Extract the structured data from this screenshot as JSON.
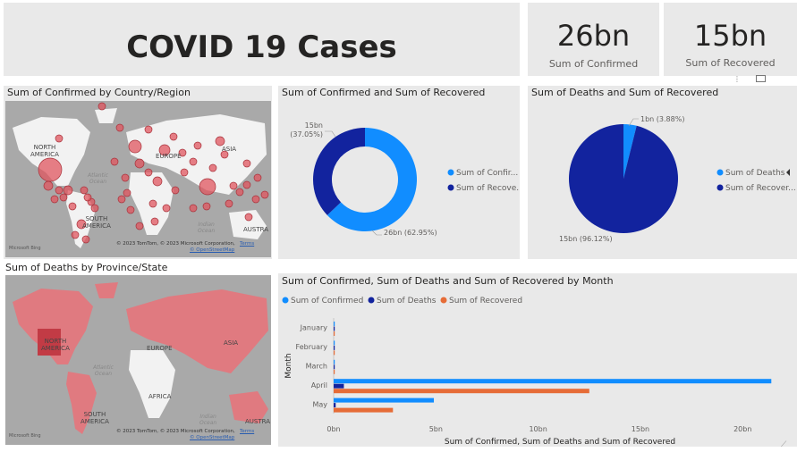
{
  "header": {
    "title": "COVID 19 Cases"
  },
  "kpis": [
    {
      "value": "26bn",
      "label": "Sum of Confirmed"
    },
    {
      "value": "15bn",
      "label": "Sum of Recovered"
    }
  ],
  "map1": {
    "title": "Sum of Confirmed by Country/Region",
    "labels": [
      "NORTH",
      "AMERICA",
      "ASIA",
      "Atlantic",
      "Ocean",
      "Indian",
      "Ocean",
      "SOUTH",
      "AMERICA",
      "AUSTRA",
      "EUROPE"
    ],
    "copyright": "© 2023 TomTom, © 2023 Microsoft Corporation,",
    "terms": "Terms",
    "osm": "© OpenStreetMap",
    "logo": "Microsoft Bing"
  },
  "map2": {
    "title": "Sum of Deaths by Province/State",
    "labels": [
      "NORTH",
      "AMERICA",
      "EUROPE",
      "ASIA",
      "AFRICA",
      "Atlantic",
      "Ocean",
      "Indian",
      "Ocean",
      "SOUTH",
      "AMERICA",
      "AUSTRA"
    ],
    "copyright": "© 2023 TomTom, © 2023 Microsoft Corporation,",
    "terms": "Terms",
    "osm": "© OpenStreetMap",
    "logo": "Microsoft Bing"
  },
  "colors": {
    "confirmed": "#118dff",
    "deaths": "#12239e",
    "recovered": "#e66c37"
  },
  "chart_data": [
    {
      "type": "pie",
      "variant": "donut",
      "title": "Sum of Confirmed and Sum of Recovered",
      "slices": [
        {
          "name": "Sum of Confirmed",
          "value": 26,
          "percent": 62.95,
          "label": "26bn (62.95%)",
          "legend": "Sum of Confir..."
        },
        {
          "name": "Sum of Recovered",
          "value": 15,
          "percent": 37.05,
          "label": "15bn (37.05%)",
          "legend": "Sum of Recove..."
        }
      ],
      "legend_position": "right"
    },
    {
      "type": "pie",
      "title": "Sum of Deaths and Sum of Recovered",
      "slices": [
        {
          "name": "Sum of Deaths",
          "value": 1,
          "percent": 3.88,
          "label": "1bn (3.88%)",
          "legend": "Sum of Deaths"
        },
        {
          "name": "Sum of Recovered",
          "value": 15,
          "percent": 96.12,
          "label": "15bn (96.12%)",
          "legend": "Sum of Recover..."
        }
      ],
      "legend_position": "right"
    },
    {
      "type": "bar",
      "orientation": "horizontal",
      "title": "Sum of Confirmed, Sum of Deaths and Sum of Recovered by Month",
      "ylabel": "Month",
      "xlabel": "Sum of Confirmed, Sum of Deaths and Sum of Recovered",
      "categories": [
        "January",
        "February",
        "March",
        "April",
        "May"
      ],
      "series": [
        {
          "name": "Sum of Confirmed",
          "values": [
            0.01,
            0.02,
            0.05,
            21.4,
            4.9
          ]
        },
        {
          "name": "Sum of Deaths",
          "values": [
            0.0,
            0.0,
            0.0,
            0.5,
            0.1
          ]
        },
        {
          "name": "Sum of Recovered",
          "values": [
            0.0,
            0.0,
            0.01,
            12.5,
            2.9
          ]
        }
      ],
      "xticks": [
        "0bn",
        "5bn",
        "10bn",
        "15bn",
        "20bn"
      ],
      "xlim": [
        0,
        22
      ],
      "legend_position": "top-left",
      "grid": false
    }
  ]
}
